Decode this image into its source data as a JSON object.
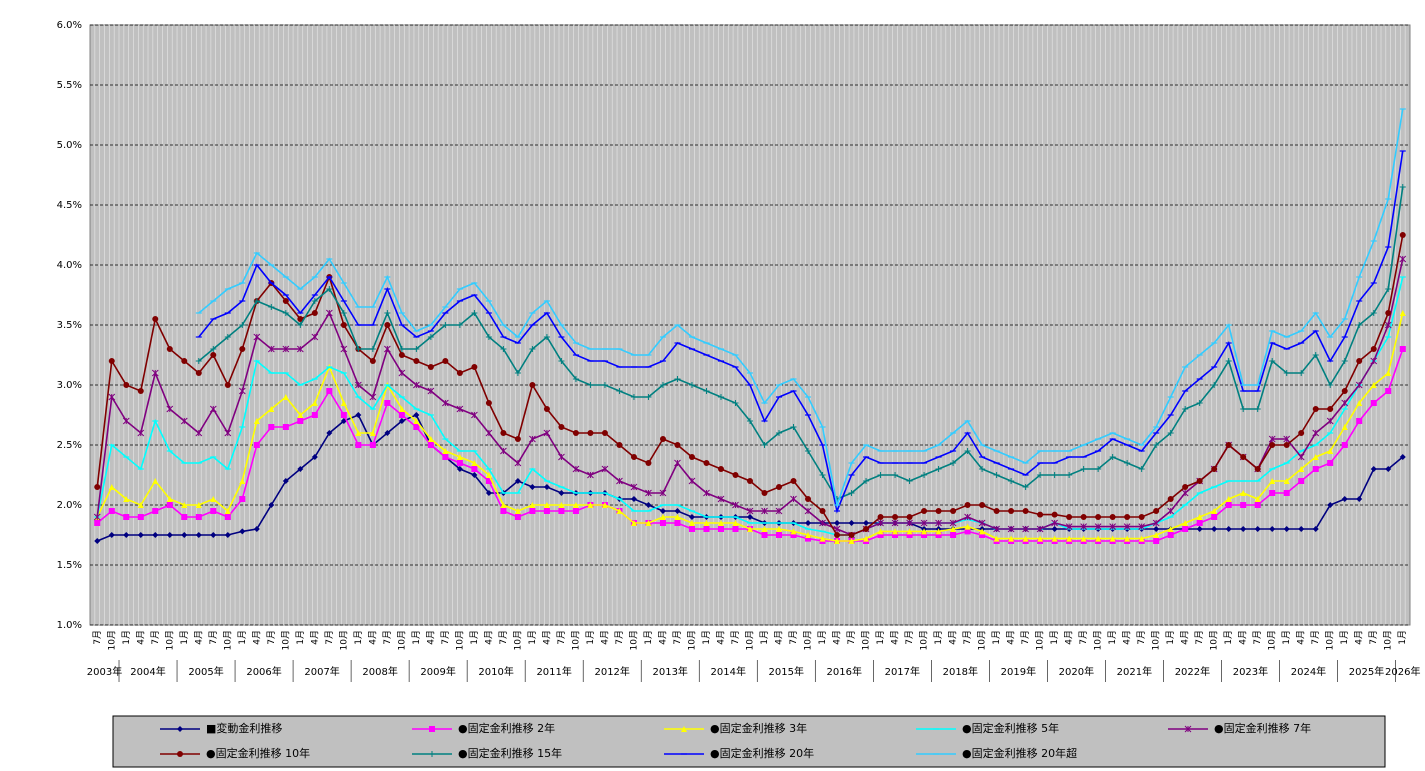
{
  "chart_data": {
    "type": "line",
    "categories": [
      "7月",
      "10月",
      "1月",
      "4月",
      "7月",
      "10月",
      "1月",
      "4月",
      "7月",
      "10月",
      "1月",
      "4月",
      "7月",
      "10月",
      "1月",
      "4月",
      "7月",
      "10月",
      "1月",
      "4月",
      "7月",
      "10月",
      "1月",
      "4月",
      "7月",
      "10月",
      "1月",
      "4月",
      "7月",
      "10月",
      "1月",
      "4月",
      "7月",
      "10月",
      "1月",
      "4月",
      "7月",
      "10月",
      "1月",
      "4月",
      "7月",
      "10月",
      "1月",
      "4月",
      "7月",
      "10月",
      "1月",
      "4月",
      "7月",
      "10月",
      "1月",
      "4月",
      "7月",
      "10月",
      "1月",
      "4月",
      "7月",
      "10月",
      "1月",
      "4月",
      "7月",
      "10月",
      "1月",
      "4月",
      "7月",
      "10月",
      "1月",
      "4月",
      "7月",
      "10月",
      "1月",
      "4月",
      "7月",
      "10月",
      "1月",
      "4月",
      "7月",
      "10月",
      "1月",
      "4月",
      "7月",
      "10月",
      "1月",
      "4月",
      "7月",
      "10月",
      "1月",
      "4月",
      "7月",
      "10月",
      "1月"
    ],
    "years": [
      "2003年",
      "2004年",
      "2005年",
      "2006年",
      "2007年",
      "2008年",
      "2009年",
      "2010年",
      "2011年",
      "2012年",
      "2013年",
      "2014年",
      "2015年",
      "2016年",
      "2017年",
      "2018年",
      "2019年",
      "2020年",
      "2021年",
      "2022年",
      "2023年",
      "2024年",
      "2025年",
      "2026年"
    ],
    "ylim": [
      1.0,
      6.0
    ],
    "yticks": [
      {
        "value": 1.0,
        "label": "1.0%"
      },
      {
        "value": 1.5,
        "label": "1.5%"
      },
      {
        "value": 2.0,
        "label": "2.0%"
      },
      {
        "value": 2.5,
        "label": "2.5%"
      },
      {
        "value": 3.0,
        "label": "3.0%"
      },
      {
        "value": 3.5,
        "label": "3.5%"
      },
      {
        "value": 4.0,
        "label": "4.0%"
      },
      {
        "value": 4.5,
        "label": "4.5%"
      },
      {
        "value": 5.0,
        "label": "5.0%"
      },
      {
        "value": 5.5,
        "label": "5.5%"
      },
      {
        "value": 6.0,
        "label": "6.0%"
      }
    ],
    "grid": true,
    "legend": "bottom",
    "series": [
      {
        "name": "■変動金利推移",
        "color": "#000080",
        "marker": "diamond",
        "values": [
          1.7,
          1.75,
          1.75,
          1.75,
          1.75,
          1.75,
          1.75,
          1.75,
          1.75,
          1.75,
          1.78,
          1.8,
          2.0,
          2.2,
          2.3,
          2.4,
          2.6,
          2.7,
          2.75,
          2.5,
          2.6,
          2.7,
          2.75,
          2.5,
          2.4,
          2.3,
          2.25,
          2.1,
          2.1,
          2.2,
          2.15,
          2.15,
          2.1,
          2.1,
          2.1,
          2.1,
          2.05,
          2.05,
          2.0,
          1.95,
          1.95,
          1.9,
          1.9,
          1.9,
          1.9,
          1.9,
          1.85,
          1.85,
          1.85,
          1.85,
          1.85,
          1.85,
          1.85,
          1.85,
          1.85,
          1.85,
          1.85,
          1.8,
          1.8,
          1.8,
          1.8,
          1.8,
          1.8,
          1.8,
          1.8,
          1.8,
          1.8,
          1.8,
          1.8,
          1.8,
          1.8,
          1.8,
          1.8,
          1.8,
          1.8,
          1.8,
          1.8,
          1.8,
          1.8,
          1.8,
          1.8,
          1.8,
          1.8,
          1.8,
          1.8,
          2.0,
          2.05,
          2.05,
          2.3,
          2.3,
          2.4
        ]
      },
      {
        "name": "●固定金利推移 2年",
        "color": "#ff00ff",
        "marker": "square",
        "values": [
          1.85,
          1.95,
          1.9,
          1.9,
          1.95,
          2.0,
          1.9,
          1.9,
          1.95,
          1.9,
          2.05,
          2.5,
          2.65,
          2.65,
          2.7,
          2.75,
          2.95,
          2.75,
          2.5,
          2.5,
          2.85,
          2.75,
          2.65,
          2.5,
          2.4,
          2.35,
          2.3,
          2.2,
          1.95,
          1.9,
          1.95,
          1.95,
          1.95,
          1.95,
          2.0,
          2.0,
          1.95,
          1.85,
          1.85,
          1.85,
          1.85,
          1.8,
          1.8,
          1.8,
          1.8,
          1.8,
          1.75,
          1.75,
          1.75,
          1.72,
          1.7,
          1.7,
          1.7,
          1.7,
          1.75,
          1.75,
          1.75,
          1.75,
          1.75,
          1.75,
          1.78,
          1.75,
          1.7,
          1.7,
          1.7,
          1.7,
          1.7,
          1.7,
          1.7,
          1.7,
          1.7,
          1.7,
          1.7,
          1.7,
          1.75,
          1.8,
          1.85,
          1.9,
          2.0,
          2.0,
          2.0,
          2.1,
          2.1,
          2.2,
          2.3,
          2.35,
          2.5,
          2.7,
          2.85,
          2.95,
          3.3
        ]
      },
      {
        "name": "●固定金利推移 3年",
        "color": "#ffff00",
        "marker": "triangle",
        "values": [
          1.9,
          2.15,
          2.05,
          2.0,
          2.2,
          2.05,
          2.0,
          2.0,
          2.05,
          1.95,
          2.2,
          2.7,
          2.8,
          2.9,
          2.75,
          2.85,
          3.15,
          2.85,
          2.6,
          2.6,
          3.0,
          2.8,
          2.7,
          2.55,
          2.45,
          2.4,
          2.35,
          2.25,
          2.0,
          1.95,
          2.0,
          2.0,
          2.0,
          2.0,
          2.0,
          2.0,
          1.95,
          1.85,
          1.85,
          1.9,
          1.9,
          1.85,
          1.85,
          1.85,
          1.85,
          1.8,
          1.8,
          1.8,
          1.78,
          1.75,
          1.72,
          1.7,
          1.7,
          1.72,
          1.78,
          1.78,
          1.78,
          1.78,
          1.78,
          1.8,
          1.82,
          1.78,
          1.72,
          1.72,
          1.72,
          1.72,
          1.72,
          1.72,
          1.72,
          1.72,
          1.72,
          1.72,
          1.72,
          1.75,
          1.8,
          1.85,
          1.9,
          1.95,
          2.05,
          2.1,
          2.05,
          2.2,
          2.2,
          2.3,
          2.4,
          2.45,
          2.65,
          2.85,
          3.0,
          3.1,
          3.6
        ]
      },
      {
        "name": "●固定金利推移 5年",
        "color": "#00ffff",
        "marker": "dash",
        "values": [
          1.9,
          2.5,
          2.4,
          2.3,
          2.7,
          2.45,
          2.35,
          2.35,
          2.4,
          2.3,
          2.65,
          3.2,
          3.1,
          3.1,
          3.0,
          3.05,
          3.15,
          3.1,
          2.9,
          2.8,
          3.0,
          2.9,
          2.8,
          2.75,
          2.55,
          2.45,
          2.45,
          2.3,
          2.1,
          2.1,
          2.3,
          2.2,
          2.15,
          2.1,
          2.1,
          2.1,
          2.05,
          1.95,
          1.95,
          2.0,
          2.0,
          1.95,
          1.9,
          1.9,
          1.9,
          1.85,
          1.85,
          1.85,
          1.85,
          1.8,
          1.78,
          1.75,
          1.75,
          1.8,
          1.85,
          1.85,
          1.85,
          1.85,
          1.85,
          1.85,
          1.88,
          1.85,
          1.8,
          1.8,
          1.8,
          1.8,
          1.85,
          1.8,
          1.8,
          1.8,
          1.8,
          1.8,
          1.8,
          1.85,
          1.9,
          2.0,
          2.1,
          2.15,
          2.2,
          2.2,
          2.2,
          2.3,
          2.35,
          2.45,
          2.5,
          2.6,
          2.8,
          3.0,
          3.2,
          3.4,
          3.9
        ]
      },
      {
        "name": "●固定金利推移 7年",
        "color": "#800080",
        "marker": "star",
        "values": [
          1.9,
          2.9,
          2.7,
          2.6,
          3.1,
          2.8,
          2.7,
          2.6,
          2.8,
          2.6,
          2.95,
          3.4,
          3.3,
          3.3,
          3.3,
          3.4,
          3.6,
          3.3,
          3.0,
          2.9,
          3.3,
          3.1,
          3.0,
          2.95,
          2.85,
          2.8,
          2.75,
          2.6,
          2.45,
          2.35,
          2.55,
          2.6,
          2.4,
          2.3,
          2.25,
          2.3,
          2.2,
          2.15,
          2.1,
          2.1,
          2.35,
          2.2,
          2.1,
          2.05,
          2.0,
          1.95,
          1.95,
          1.95,
          2.05,
          1.95,
          1.85,
          1.8,
          1.75,
          1.8,
          1.85,
          1.85,
          1.85,
          1.85,
          1.85,
          1.85,
          1.9,
          1.85,
          1.8,
          1.8,
          1.8,
          1.8,
          1.85,
          1.82,
          1.82,
          1.82,
          1.82,
          1.82,
          1.82,
          1.85,
          1.95,
          2.1,
          2.2,
          2.3,
          2.5,
          2.4,
          2.3,
          2.55,
          2.55,
          2.4,
          2.6,
          2.7,
          2.85,
          3.0,
          3.2,
          3.5,
          4.05
        ]
      },
      {
        "name": "●固定金利推移 10年",
        "color": "#800000",
        "marker": "circle",
        "values": [
          2.15,
          3.2,
          3.0,
          2.95,
          3.55,
          3.3,
          3.2,
          3.1,
          3.25,
          3.0,
          3.3,
          3.7,
          3.85,
          3.7,
          3.55,
          3.6,
          3.9,
          3.5,
          3.3,
          3.2,
          3.5,
          3.25,
          3.2,
          3.15,
          3.2,
          3.1,
          3.15,
          2.85,
          2.6,
          2.55,
          3.0,
          2.8,
          2.65,
          2.6,
          2.6,
          2.6,
          2.5,
          2.4,
          2.35,
          2.55,
          2.5,
          2.4,
          2.35,
          2.3,
          2.25,
          2.2,
          2.1,
          2.15,
          2.2,
          2.05,
          1.95,
          1.75,
          1.75,
          1.8,
          1.9,
          1.9,
          1.9,
          1.95,
          1.95,
          1.95,
          2.0,
          2.0,
          1.95,
          1.95,
          1.95,
          1.92,
          1.92,
          1.9,
          1.9,
          1.9,
          1.9,
          1.9,
          1.9,
          1.95,
          2.05,
          2.15,
          2.2,
          2.3,
          2.5,
          2.4,
          2.3,
          2.5,
          2.5,
          2.6,
          2.8,
          2.8,
          2.95,
          3.2,
          3.3,
          3.6,
          4.25
        ]
      },
      {
        "name": "●固定金利推移 15年",
        "color": "#008080",
        "marker": "plus",
        "values": [
          null,
          null,
          null,
          null,
          null,
          null,
          null,
          3.2,
          3.3,
          3.4,
          3.5,
          3.7,
          3.65,
          3.6,
          3.5,
          3.7,
          3.8,
          3.6,
          3.3,
          3.3,
          3.6,
          3.3,
          3.3,
          3.4,
          3.5,
          3.5,
          3.6,
          3.4,
          3.3,
          3.1,
          3.3,
          3.4,
          3.2,
          3.05,
          3.0,
          3.0,
          2.95,
          2.9,
          2.9,
          3.0,
          3.05,
          3.0,
          2.95,
          2.9,
          2.85,
          2.7,
          2.5,
          2.6,
          2.65,
          2.45,
          2.25,
          2.05,
          2.1,
          2.2,
          2.25,
          2.25,
          2.2,
          2.25,
          2.3,
          2.35,
          2.45,
          2.3,
          2.25,
          2.2,
          2.15,
          2.25,
          2.25,
          2.25,
          2.3,
          2.3,
          2.4,
          2.35,
          2.3,
          2.5,
          2.6,
          2.8,
          2.85,
          3.0,
          3.2,
          2.8,
          2.8,
          3.2,
          3.1,
          3.1,
          3.25,
          3.0,
          3.2,
          3.5,
          3.6,
          3.8,
          4.65
        ]
      },
      {
        "name": "●固定金利推移 20年",
        "color": "#0000ff",
        "marker": "dash",
        "values": [
          null,
          null,
          null,
          null,
          null,
          null,
          null,
          3.4,
          3.55,
          3.6,
          3.7,
          4.0,
          3.85,
          3.75,
          3.6,
          3.75,
          3.9,
          3.7,
          3.5,
          3.5,
          3.8,
          3.5,
          3.4,
          3.45,
          3.6,
          3.7,
          3.75,
          3.6,
          3.4,
          3.35,
          3.5,
          3.6,
          3.4,
          3.25,
          3.2,
          3.2,
          3.15,
          3.15,
          3.15,
          3.2,
          3.35,
          3.3,
          3.25,
          3.2,
          3.15,
          3.0,
          2.7,
          2.9,
          2.95,
          2.75,
          2.5,
          1.95,
          2.25,
          2.4,
          2.35,
          2.35,
          2.35,
          2.35,
          2.4,
          2.45,
          2.6,
          2.4,
          2.35,
          2.3,
          2.25,
          2.35,
          2.35,
          2.4,
          2.4,
          2.45,
          2.55,
          2.5,
          2.45,
          2.6,
          2.75,
          2.95,
          3.05,
          3.15,
          3.35,
          2.95,
          2.95,
          3.35,
          3.3,
          3.35,
          3.45,
          3.2,
          3.4,
          3.7,
          3.85,
          4.15,
          4.95
        ]
      },
      {
        "name": "●固定金利推移 20年超",
        "color": "#33ccff",
        "marker": "dash",
        "values": [
          null,
          null,
          null,
          null,
          null,
          null,
          null,
          3.6,
          3.7,
          3.8,
          3.85,
          4.1,
          4.0,
          3.9,
          3.8,
          3.9,
          4.05,
          3.85,
          3.65,
          3.65,
          3.9,
          3.6,
          3.45,
          3.5,
          3.65,
          3.8,
          3.85,
          3.7,
          3.5,
          3.4,
          3.6,
          3.7,
          3.5,
          3.35,
          3.3,
          3.3,
          3.3,
          3.25,
          3.25,
          3.4,
          3.5,
          3.4,
          3.35,
          3.3,
          3.25,
          3.1,
          2.85,
          3.0,
          3.05,
          2.9,
          2.65,
          2.0,
          2.35,
          2.5,
          2.45,
          2.45,
          2.45,
          2.45,
          2.5,
          2.6,
          2.7,
          2.5,
          2.45,
          2.4,
          2.35,
          2.45,
          2.45,
          2.45,
          2.5,
          2.55,
          2.6,
          2.55,
          2.5,
          2.65,
          2.9,
          3.15,
          3.25,
          3.35,
          3.5,
          3.0,
          3.0,
          3.45,
          3.4,
          3.45,
          3.6,
          3.4,
          3.55,
          3.9,
          4.2,
          4.55,
          5.3
        ]
      }
    ]
  }
}
